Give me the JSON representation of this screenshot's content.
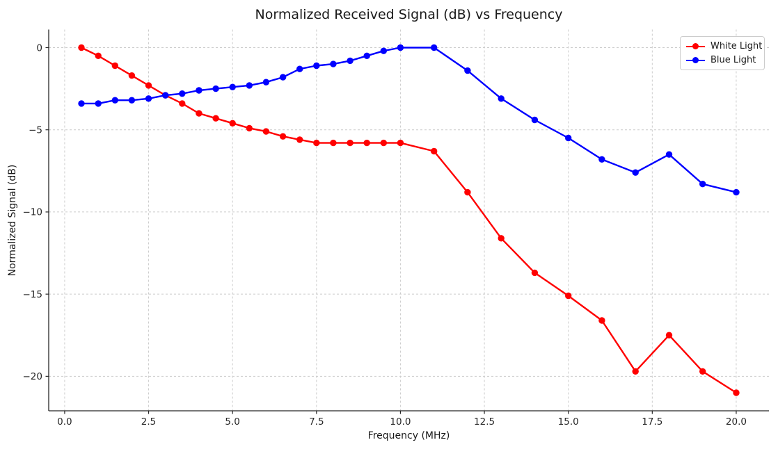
{
  "chart_data": {
    "type": "line",
    "title": "Normalized Received Signal (dB) vs Frequency",
    "xlabel": "Frequency (MHz)",
    "ylabel": "Normalized Signal (dB)",
    "xlim": [
      -0.475,
      20.975
    ],
    "ylim": [
      -22.1,
      1.1
    ],
    "grid": true,
    "legend_position": "upper right",
    "xticks": {
      "values": [
        0,
        2.5,
        5,
        7.5,
        10,
        12.5,
        15,
        17.5,
        20
      ],
      "labels": [
        "0.0",
        "2.5",
        "5.0",
        "7.5",
        "10.0",
        "12.5",
        "15.0",
        "17.5",
        "20.0"
      ]
    },
    "yticks": {
      "values": [
        0,
        -5,
        -10,
        -15,
        -20
      ],
      "labels": [
        "0",
        "−5",
        "−10",
        "−15",
        "−20"
      ]
    },
    "x": [
      0.5,
      1.0,
      1.5,
      2.0,
      2.5,
      3.0,
      3.5,
      4.0,
      4.5,
      5.0,
      5.5,
      6.0,
      6.5,
      7.0,
      7.5,
      8.0,
      8.5,
      9.0,
      9.5,
      10.0,
      11.0,
      12.0,
      13.0,
      14.0,
      15.0,
      16.0,
      17.0,
      18.0,
      19.0,
      20.0
    ],
    "series": [
      {
        "name": "White Light",
        "color": "#ff0000",
        "values": [
          0.0,
          -0.5,
          -1.1,
          -1.7,
          -2.3,
          -2.9,
          -3.4,
          -4.0,
          -4.3,
          -4.6,
          -4.9,
          -5.1,
          -5.4,
          -5.6,
          -5.8,
          -5.8,
          -5.8,
          -5.8,
          -5.8,
          -5.8,
          -6.3,
          -8.8,
          -11.6,
          -13.7,
          -15.1,
          -16.6,
          -19.7,
          -17.5,
          -19.7,
          -21.0
        ]
      },
      {
        "name": "Blue Light",
        "color": "#0000ff",
        "values": [
          -3.4,
          -3.4,
          -3.2,
          -3.2,
          -3.1,
          -2.9,
          -2.8,
          -2.6,
          -2.5,
          -2.4,
          -2.3,
          -2.1,
          -1.8,
          -1.3,
          -1.1,
          -1.0,
          -0.8,
          -0.5,
          -0.2,
          0.0,
          0.0,
          -1.4,
          -3.1,
          -4.4,
          -5.5,
          -6.8,
          -7.6,
          -6.5,
          -8.3,
          -8.8
        ]
      }
    ]
  }
}
